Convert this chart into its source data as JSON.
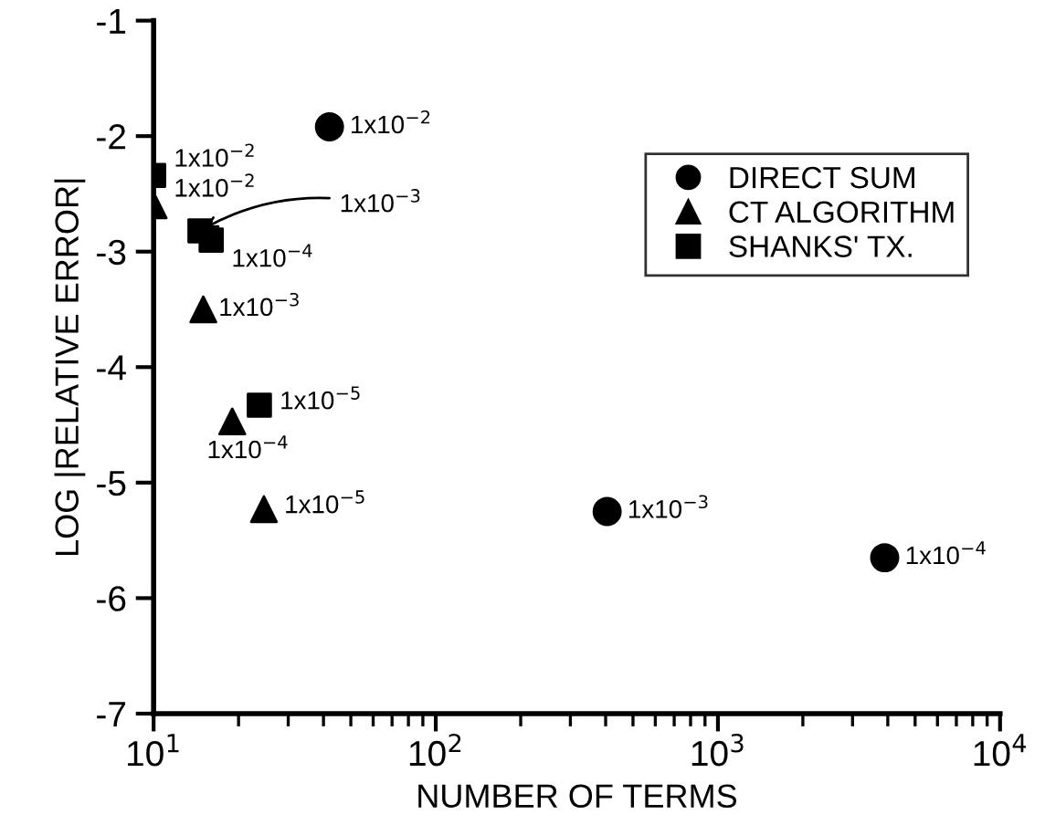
{
  "chart_data": {
    "type": "scatter",
    "xlabel": "NUMBER OF TERMS",
    "ylabel": "LOG |RELATIVE ERROR|",
    "log": "x",
    "xlim": [
      10,
      10000
    ],
    "ylim": [
      -7,
      -1
    ],
    "xticks": [
      {
        "value": 10,
        "label": "10$^{1}$"
      },
      {
        "value": 100,
        "label": "10$^{2}$"
      },
      {
        "value": 1000,
        "label": "10$^{3}$"
      },
      {
        "value": 10000,
        "label": "10$^{4}$"
      }
    ],
    "yticks": [
      -7,
      -6,
      -5,
      -4,
      -3,
      -2,
      -1
    ],
    "grid": false,
    "legend": "right",
    "series": [
      {
        "name": "DIRECT SUM",
        "color": "#000000",
        "marker": "circle",
        "x": [
          42,
          405,
          3900
        ],
        "values": [
          -1.92,
          -5.25,
          -5.65
        ]
      },
      {
        "name": "CT ALGORITHM",
        "color": "#000000",
        "marker": "triangle",
        "x": [
          10,
          15,
          19,
          24.6
        ],
        "values": [
          -2.6,
          -3.5,
          -4.47,
          -5.23
        ]
      },
      {
        "name": "SHANKS' TX.",
        "color": "#000000",
        "marker": "square",
        "x": [
          10,
          14.6,
          16,
          23.7
        ],
        "values": [
          -2.34,
          -2.82,
          -2.9,
          -4.33
        ]
      }
    ],
    "annotations": [
      {
        "text": "1x10$^{−2}$",
        "x": 42,
        "y": -1.92
      },
      {
        "text": "1x10$^{−3}$",
        "x": 405,
        "y": -5.25
      },
      {
        "text": "1x10$^{−4}$",
        "x": 3900,
        "y": -5.65
      },
      {
        "text": "1x10$^{−2}$",
        "x": 10,
        "y": -2.34
      },
      {
        "text": "1x10$^{−2}$",
        "x": 10,
        "y": -2.6
      },
      {
        "text": "1x10$^{−3}$",
        "x": 14.6,
        "y": -2.82
      },
      {
        "text": "1x10$^{−4}$",
        "x": 16,
        "y": -2.9
      },
      {
        "text": "1x10$^{−3}$",
        "x": 15,
        "y": -3.5
      },
      {
        "text": "1x10$^{−5}$",
        "x": 23.7,
        "y": -4.33
      },
      {
        "text": "1x10$^{−4}$",
        "x": 19,
        "y": -4.47
      },
      {
        "text": "1x10$^{−5}$",
        "x": 24.6,
        "y": -5.23
      }
    ]
  }
}
